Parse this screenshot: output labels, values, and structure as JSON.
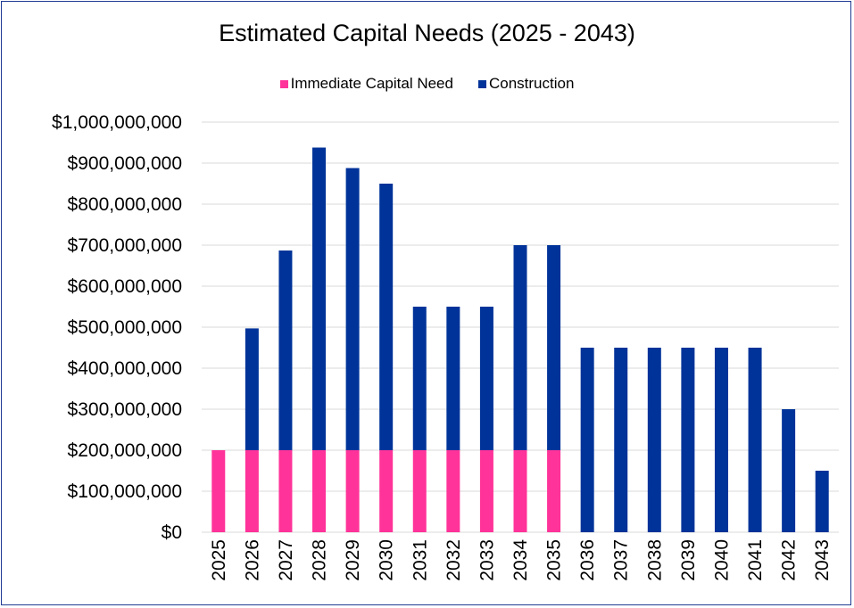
{
  "chart_data": {
    "type": "bar",
    "stacked": true,
    "title": "Estimated Capital Needs (2025 - 2043)",
    "xlabel": "",
    "ylabel": "",
    "categories": [
      "2025",
      "2026",
      "2027",
      "2028",
      "2029",
      "2030",
      "2031",
      "2032",
      "2033",
      "2034",
      "2035",
      "2036",
      "2037",
      "2038",
      "2039",
      "2040",
      "2041",
      "2042",
      "2043"
    ],
    "series": [
      {
        "name": "Immediate Capital Need",
        "color": "#ff3399",
        "values": [
          200000000,
          200000000,
          200000000,
          200000000,
          200000000,
          200000000,
          200000000,
          200000000,
          200000000,
          200000000,
          200000000,
          0,
          0,
          0,
          0,
          0,
          0,
          0,
          0
        ]
      },
      {
        "name": "Construction",
        "color": "#003399",
        "values": [
          0,
          297000000,
          487000000,
          738000000,
          688000000,
          650000000,
          350000000,
          350000000,
          350000000,
          500000000,
          500000000,
          450000000,
          450000000,
          450000000,
          450000000,
          450000000,
          450000000,
          300000000,
          150000000
        ]
      }
    ],
    "ylim": [
      0,
      1000000000
    ],
    "yticks": [
      "$0",
      "$100,000,000",
      "$200,000,000",
      "$300,000,000",
      "$400,000,000",
      "$500,000,000",
      "$600,000,000",
      "$700,000,000",
      "$800,000,000",
      "$900,000,000",
      "$1,000,000,000"
    ],
    "grid": true,
    "legend_position": "top"
  }
}
